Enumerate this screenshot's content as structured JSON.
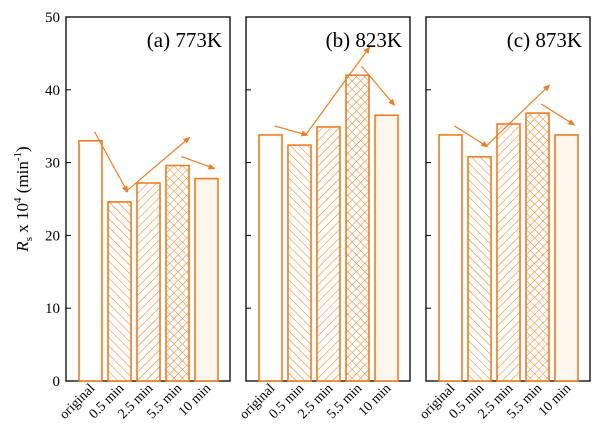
{
  "chart_data": {
    "type": "bar",
    "ylabel": {
      "main": "R",
      "sub": "s",
      "rest": " x 10",
      "sup": "4",
      "unit": " (min",
      "unit_sup": "-1",
      "close": ")"
    },
    "ylim": [
      0,
      50
    ],
    "yticks": [
      0,
      10,
      20,
      30,
      40,
      50
    ],
    "categories": [
      "original",
      "0.5 min",
      "2.5 min",
      "5.5 min",
      "10 min"
    ],
    "bar_patterns": [
      "none",
      "diag-right",
      "diag-left",
      "crosshatch",
      "light-fill"
    ],
    "bar_color": "#ED7D1F",
    "fill_tint": "#FFF6EE",
    "panels": [
      {
        "title": "(a) 773K",
        "values": [
          33.0,
          24.6,
          27.2,
          29.6,
          27.8
        ]
      },
      {
        "title": "(b) 823K",
        "values": [
          33.8,
          32.4,
          34.9,
          42.0,
          36.5
        ]
      },
      {
        "title": "(c) 873K",
        "values": [
          33.8,
          30.8,
          35.3,
          36.8,
          33.8
        ]
      }
    ]
  }
}
